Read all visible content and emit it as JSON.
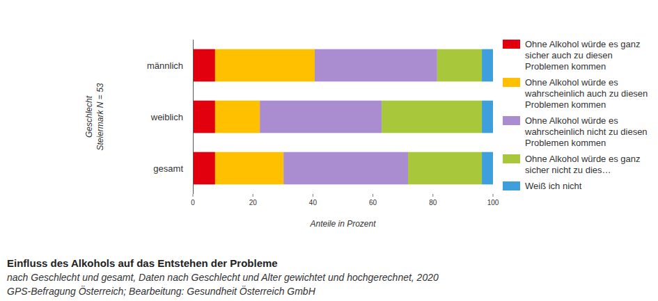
{
  "chart_data": {
    "type": "bar",
    "orientation": "horizontal",
    "stacked": true,
    "grid": false,
    "legend": "right",
    "title": "Einfluss des Alkohols auf das Entstehen der Probleme",
    "subtitle": "nach Geschlecht und gesamt, Daten nach Geschlecht und Alter gewichtet und hochgerechnet, 2020",
    "source": "GPS-Befragung Österreich; Bearbeitung: Gesundheit Österreich GmbH",
    "xlabel": "Anteile in Prozent",
    "ylabel": "Geschlecht",
    "ylabel_note": "Steiermark N = 53",
    "categories": [
      "männlich",
      "weiblich",
      "gesamt"
    ],
    "xlim": [
      0,
      100
    ],
    "xticks": [
      0,
      20,
      40,
      60,
      80,
      100
    ],
    "series": [
      {
        "name": "Ohne Alkohol würde es ganz sicher auch zu diesen Problemen kommen",
        "color": "#e2000f",
        "values": [
          7.4,
          7.4,
          7.4
        ]
      },
      {
        "name": "Ohne Alkohol würde es wahrscheinlich auch zu diesen Problemen kommen",
        "color": "#ffc000",
        "values": [
          33.2,
          14.9,
          22.8
        ]
      },
      {
        "name": "Ohne Alkohol würde es wahrscheinlich nicht zu diesen Problemen kommen",
        "color": "#aa8cd0",
        "values": [
          40.8,
          40.6,
          41.5
        ]
      },
      {
        "name": "Ohne Alkohol würde es ganz sicher nicht zu dies…",
        "color": "#a8c73a",
        "values": [
          14.9,
          33.4,
          24.6
        ]
      },
      {
        "name": "Weiß ich nicht",
        "color": "#3f9fdc",
        "values": [
          3.7,
          3.7,
          3.7
        ]
      }
    ]
  }
}
